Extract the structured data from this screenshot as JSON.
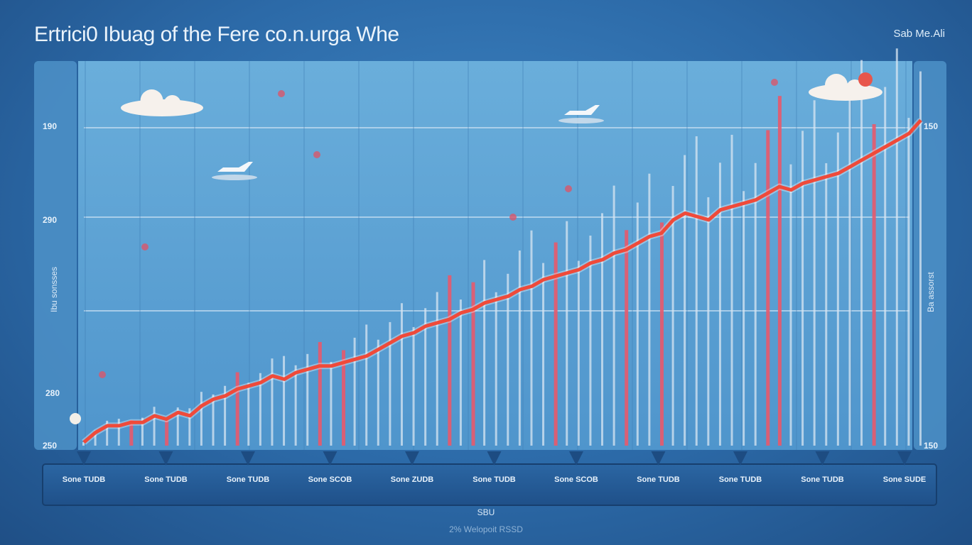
{
  "chart_data": {
    "type": "line",
    "title": "Ertrici0 Ibuag of the Fere co.n.urga Whe",
    "corner_label": "Sab Me.Ali",
    "y_ticks_left": [
      "250",
      "280",
      "290",
      "190"
    ],
    "y_ticks_right": [
      "150",
      "",
      "150"
    ],
    "y_label_left": "Ibu sonsses",
    "y_label_right": "Ba assorst",
    "x_ticks": [
      "Sone TUDB",
      "Sone TUDB",
      "Sone TUDB",
      "Sone SCOB",
      "Sone ZUDB",
      "Sone TUDB",
      "Sone SCOB",
      "Sone TUDB",
      "Sone TUDB",
      "Sone TUDB",
      "Sone SUDE"
    ],
    "x_label": "SBU",
    "x_subcaption": "2% Welopoit RSSD",
    "ylim": [
      0,
      100
    ],
    "grid": true,
    "colors": {
      "line": "#ef4a3a",
      "bar": "#d8e6f2",
      "bar_accent": "#e8596b"
    },
    "series": [
      {
        "values": [
          1,
          4,
          6,
          6,
          7,
          7,
          9,
          8,
          10,
          9,
          12,
          14,
          15,
          17,
          18,
          19,
          21,
          20,
          22,
          23,
          24,
          24,
          25,
          26,
          27,
          29,
          31,
          33,
          34,
          36,
          37,
          38,
          40,
          41,
          43,
          44,
          45,
          47,
          48,
          50,
          51,
          52,
          53,
          55,
          56,
          58,
          59,
          61,
          63,
          64,
          68,
          70,
          69,
          68,
          71,
          72,
          73,
          74,
          76,
          78,
          77,
          79,
          80,
          81,
          82,
          84,
          86,
          88,
          90,
          92,
          94,
          98
        ]
      }
    ]
  }
}
